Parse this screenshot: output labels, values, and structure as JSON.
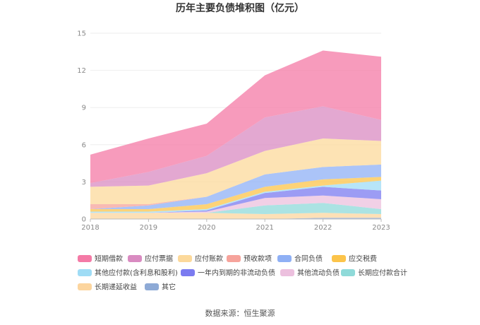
{
  "chart_data": {
    "type": "area",
    "stacked": true,
    "title": "历年主要负债堆积图（亿元）",
    "xlabel": "",
    "ylabel": "",
    "categories": [
      "2018",
      "2019",
      "2020",
      "2021",
      "2022",
      "2023"
    ],
    "ylim": [
      0,
      15
    ],
    "yticks": [
      0,
      3,
      6,
      9,
      12,
      15
    ],
    "grid": true,
    "legend_position": "bottom",
    "series": [
      {
        "name": "短期借款",
        "color": "#f47aa6",
        "values": [
          2.3,
          2.7,
          2.6,
          3.4,
          4.5,
          5.1
        ]
      },
      {
        "name": "应付票据",
        "color": "#d98bc1",
        "values": [
          0.3,
          1.1,
          1.4,
          2.7,
          2.6,
          1.7
        ]
      },
      {
        "name": "应付账款",
        "color": "#fcd99b",
        "values": [
          1.4,
          1.5,
          1.9,
          1.9,
          2.3,
          1.9
        ]
      },
      {
        "name": "预收款项",
        "color": "#f6a39b",
        "values": [
          0.4,
          0.1,
          0.0,
          0.0,
          0.0,
          0.0
        ]
      },
      {
        "name": "合同负债",
        "color": "#8fb0f5",
        "values": [
          0.0,
          0.3,
          0.6,
          1.0,
          1.0,
          1.0
        ]
      },
      {
        "name": "应交税费",
        "color": "#fcc44a",
        "values": [
          0.2,
          0.2,
          0.4,
          0.4,
          0.5,
          0.3
        ]
      },
      {
        "name": "其他应付款(含利息和股利)",
        "color": "#9fdcf5",
        "values": [
          0.1,
          0.1,
          0.1,
          0.1,
          0.1,
          0.8
        ]
      },
      {
        "name": "一年内到期的非流动负债",
        "color": "#7b7bf0",
        "values": [
          0.0,
          0.0,
          0.1,
          0.4,
          0.7,
          0.7
        ]
      },
      {
        "name": "其他流动负债",
        "color": "#ecc0de",
        "values": [
          0.0,
          0.0,
          0.1,
          0.6,
          0.6,
          0.8
        ]
      },
      {
        "name": "长期应付款合计",
        "color": "#8fdad9",
        "values": [
          0.0,
          0.0,
          0.0,
          0.7,
          0.8,
          0.4
        ]
      },
      {
        "name": "长期递延收益",
        "color": "#fcd59e",
        "values": [
          0.5,
          0.5,
          0.5,
          0.4,
          0.4,
          0.3
        ]
      },
      {
        "name": "其它",
        "color": "#8eaad6",
        "values": [
          0.0,
          0.0,
          0.0,
          0.0,
          0.1,
          0.1
        ]
      }
    ]
  },
  "source": "数据来源：恒生聚源"
}
